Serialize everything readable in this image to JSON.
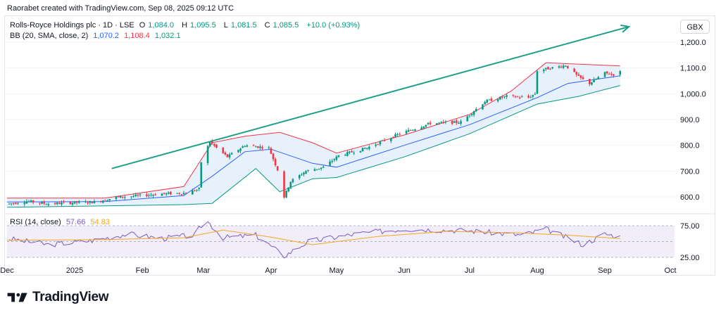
{
  "credit": "Raorabet created with TradingView.com, Sep 08, 2025 09:12 UTC",
  "legend": {
    "symbol": "Rolls-Royce Holdings plc · 1D · LSE",
    "o_label": "O",
    "o": "1,084.0",
    "h_label": "H",
    "h": "1,095.5",
    "l_label": "L",
    "l": "1,081.5",
    "c_label": "C",
    "c": "1,085.5",
    "change": "+10.0 (+0.93%)",
    "bb_label": "BB (20, SMA, close, 2)",
    "bb_basis": "1,070.2",
    "bb_upper": "1,108.4",
    "bb_lower": "1,032.1",
    "rsi_label": "RSI (14, close)",
    "rsi_value": "57.66",
    "rsi_ma": "54.83"
  },
  "currency": "GBX",
  "brand": "TradingView",
  "colors": {
    "up": "#089981",
    "down": "#f23645",
    "basis": "#2962ff",
    "upper": "#f23645",
    "lower": "#089981",
    "band_fill": "#e3eefa",
    "trendline": "#1a9e86",
    "rsi": "#7e57c2",
    "rsi_ma": "#f5a623",
    "rsi_zone": "#ede7f6"
  },
  "chart_data": [
    {
      "type": "candlestick",
      "title": "Rolls-Royce Holdings plc · 1D · LSE",
      "y_ticks": [
        "600.0",
        "700.0",
        "800.0",
        "900.0",
        "1,000.0",
        "1,100.0",
        "1,200.0"
      ],
      "y_values": [
        600,
        700,
        800,
        900,
        1000,
        1100,
        1200
      ],
      "x_ticks": [
        "Dec",
        "2025",
        "Feb",
        "Mar",
        "Apr",
        "May",
        "Jun",
        "Jul",
        "Aug",
        "Sep",
        "Oct"
      ],
      "x_tick_dates": [
        "2024-12-01",
        "2025-01-01",
        "2025-02-01",
        "2025-03-01",
        "2025-04-01",
        "2025-05-01",
        "2025-06-01",
        "2025-07-01",
        "2025-08-01",
        "2025-09-01",
        "2025-10-01"
      ],
      "price_anchors": [
        [
          "2024-12-01",
          572
        ],
        [
          "2024-12-10",
          583
        ],
        [
          "2024-12-20",
          573
        ],
        [
          "2025-01-01",
          578
        ],
        [
          "2025-01-10",
          580
        ],
        [
          "2025-01-20",
          598
        ],
        [
          "2025-01-31",
          605
        ],
        [
          "2025-02-10",
          612
        ],
        [
          "2025-02-21",
          615
        ],
        [
          "2025-02-27",
          630
        ],
        [
          "2025-02-28",
          735
        ],
        [
          "2025-03-04",
          815
        ],
        [
          "2025-03-07",
          790
        ],
        [
          "2025-03-12",
          755
        ],
        [
          "2025-03-20",
          800
        ],
        [
          "2025-03-31",
          790
        ],
        [
          "2025-04-04",
          705
        ],
        [
          "2025-04-07",
          600
        ],
        [
          "2025-04-10",
          660
        ],
        [
          "2025-04-17",
          700
        ],
        [
          "2025-04-25",
          715
        ],
        [
          "2025-05-02",
          760
        ],
        [
          "2025-05-15",
          790
        ],
        [
          "2025-05-30",
          845
        ],
        [
          "2025-06-13",
          885
        ],
        [
          "2025-06-27",
          890
        ],
        [
          "2025-07-08",
          970
        ],
        [
          "2025-07-18",
          990
        ],
        [
          "2025-07-28",
          985
        ],
        [
          "2025-07-31",
          1000
        ],
        [
          "2025-08-01",
          1090
        ],
        [
          "2025-08-14",
          1110
        ],
        [
          "2025-08-20",
          1065
        ],
        [
          "2025-08-25",
          1040
        ],
        [
          "2025-09-01",
          1080
        ],
        [
          "2025-09-05",
          1075
        ],
        [
          "2025-09-08",
          1085
        ]
      ],
      "bands": {
        "basis": [
          [
            "2024-12-01",
            580
          ],
          [
            "2025-01-15",
            582
          ],
          [
            "2025-02-20",
            605
          ],
          [
            "2025-03-05",
            680
          ],
          [
            "2025-03-20",
            775
          ],
          [
            "2025-04-01",
            785
          ],
          [
            "2025-04-20",
            730
          ],
          [
            "2025-05-01",
            715
          ],
          [
            "2025-06-01",
            800
          ],
          [
            "2025-07-01",
            880
          ],
          [
            "2025-08-01",
            985
          ],
          [
            "2025-08-15",
            1040
          ],
          [
            "2025-09-08",
            1070
          ]
        ],
        "upper": [
          [
            "2024-12-01",
            595
          ],
          [
            "2025-01-15",
            595
          ],
          [
            "2025-02-20",
            640
          ],
          [
            "2025-03-05",
            810
          ],
          [
            "2025-03-20",
            835
          ],
          [
            "2025-04-05",
            850
          ],
          [
            "2025-04-20",
            810
          ],
          [
            "2025-05-01",
            770
          ],
          [
            "2025-06-01",
            840
          ],
          [
            "2025-07-01",
            920
          ],
          [
            "2025-07-20",
            1010
          ],
          [
            "2025-08-05",
            1120
          ],
          [
            "2025-09-08",
            1108
          ]
        ],
        "lower": [
          [
            "2024-12-01",
            560
          ],
          [
            "2025-01-15",
            565
          ],
          [
            "2025-02-20",
            570
          ],
          [
            "2025-03-05",
            575
          ],
          [
            "2025-03-25",
            710
          ],
          [
            "2025-04-05",
            620
          ],
          [
            "2025-04-20",
            670
          ],
          [
            "2025-05-01",
            675
          ],
          [
            "2025-06-01",
            755
          ],
          [
            "2025-07-01",
            845
          ],
          [
            "2025-08-01",
            960
          ],
          [
            "2025-08-20",
            990
          ],
          [
            "2025-09-08",
            1032
          ]
        ]
      },
      "trendline": [
        [
          "2025-01-18",
          710
        ],
        [
          "2025-09-12",
          1260
        ]
      ]
    },
    {
      "type": "line",
      "title": "RSI (14, close)",
      "y_ticks": [
        "75.00",
        "25.00"
      ],
      "y_values": [
        75,
        25
      ],
      "rsi_anchors": [
        [
          "2024-12-01",
          55
        ],
        [
          "2024-12-20",
          45
        ],
        [
          "2025-01-10",
          52
        ],
        [
          "2025-01-25",
          62
        ],
        [
          "2025-02-10",
          55
        ],
        [
          "2025-02-25",
          60
        ],
        [
          "2025-03-02",
          85
        ],
        [
          "2025-03-10",
          56
        ],
        [
          "2025-03-25",
          60
        ],
        [
          "2025-04-04",
          35
        ],
        [
          "2025-04-07",
          27
        ],
        [
          "2025-04-18",
          50
        ],
        [
          "2025-05-10",
          62
        ],
        [
          "2025-06-01",
          70
        ],
        [
          "2025-07-01",
          67
        ],
        [
          "2025-07-25",
          60
        ],
        [
          "2025-08-05",
          70
        ],
        [
          "2025-08-22",
          45
        ],
        [
          "2025-09-01",
          62
        ],
        [
          "2025-09-08",
          57.66
        ]
      ],
      "ma_anchors": [
        [
          "2024-12-01",
          52
        ],
        [
          "2025-01-15",
          53
        ],
        [
          "2025-02-20",
          56
        ],
        [
          "2025-03-10",
          68
        ],
        [
          "2025-04-01",
          57
        ],
        [
          "2025-04-20",
          45
        ],
        [
          "2025-05-20",
          58
        ],
        [
          "2025-06-20",
          66
        ],
        [
          "2025-07-20",
          64
        ],
        [
          "2025-08-15",
          60
        ],
        [
          "2025-09-08",
          54.83
        ]
      ]
    }
  ]
}
